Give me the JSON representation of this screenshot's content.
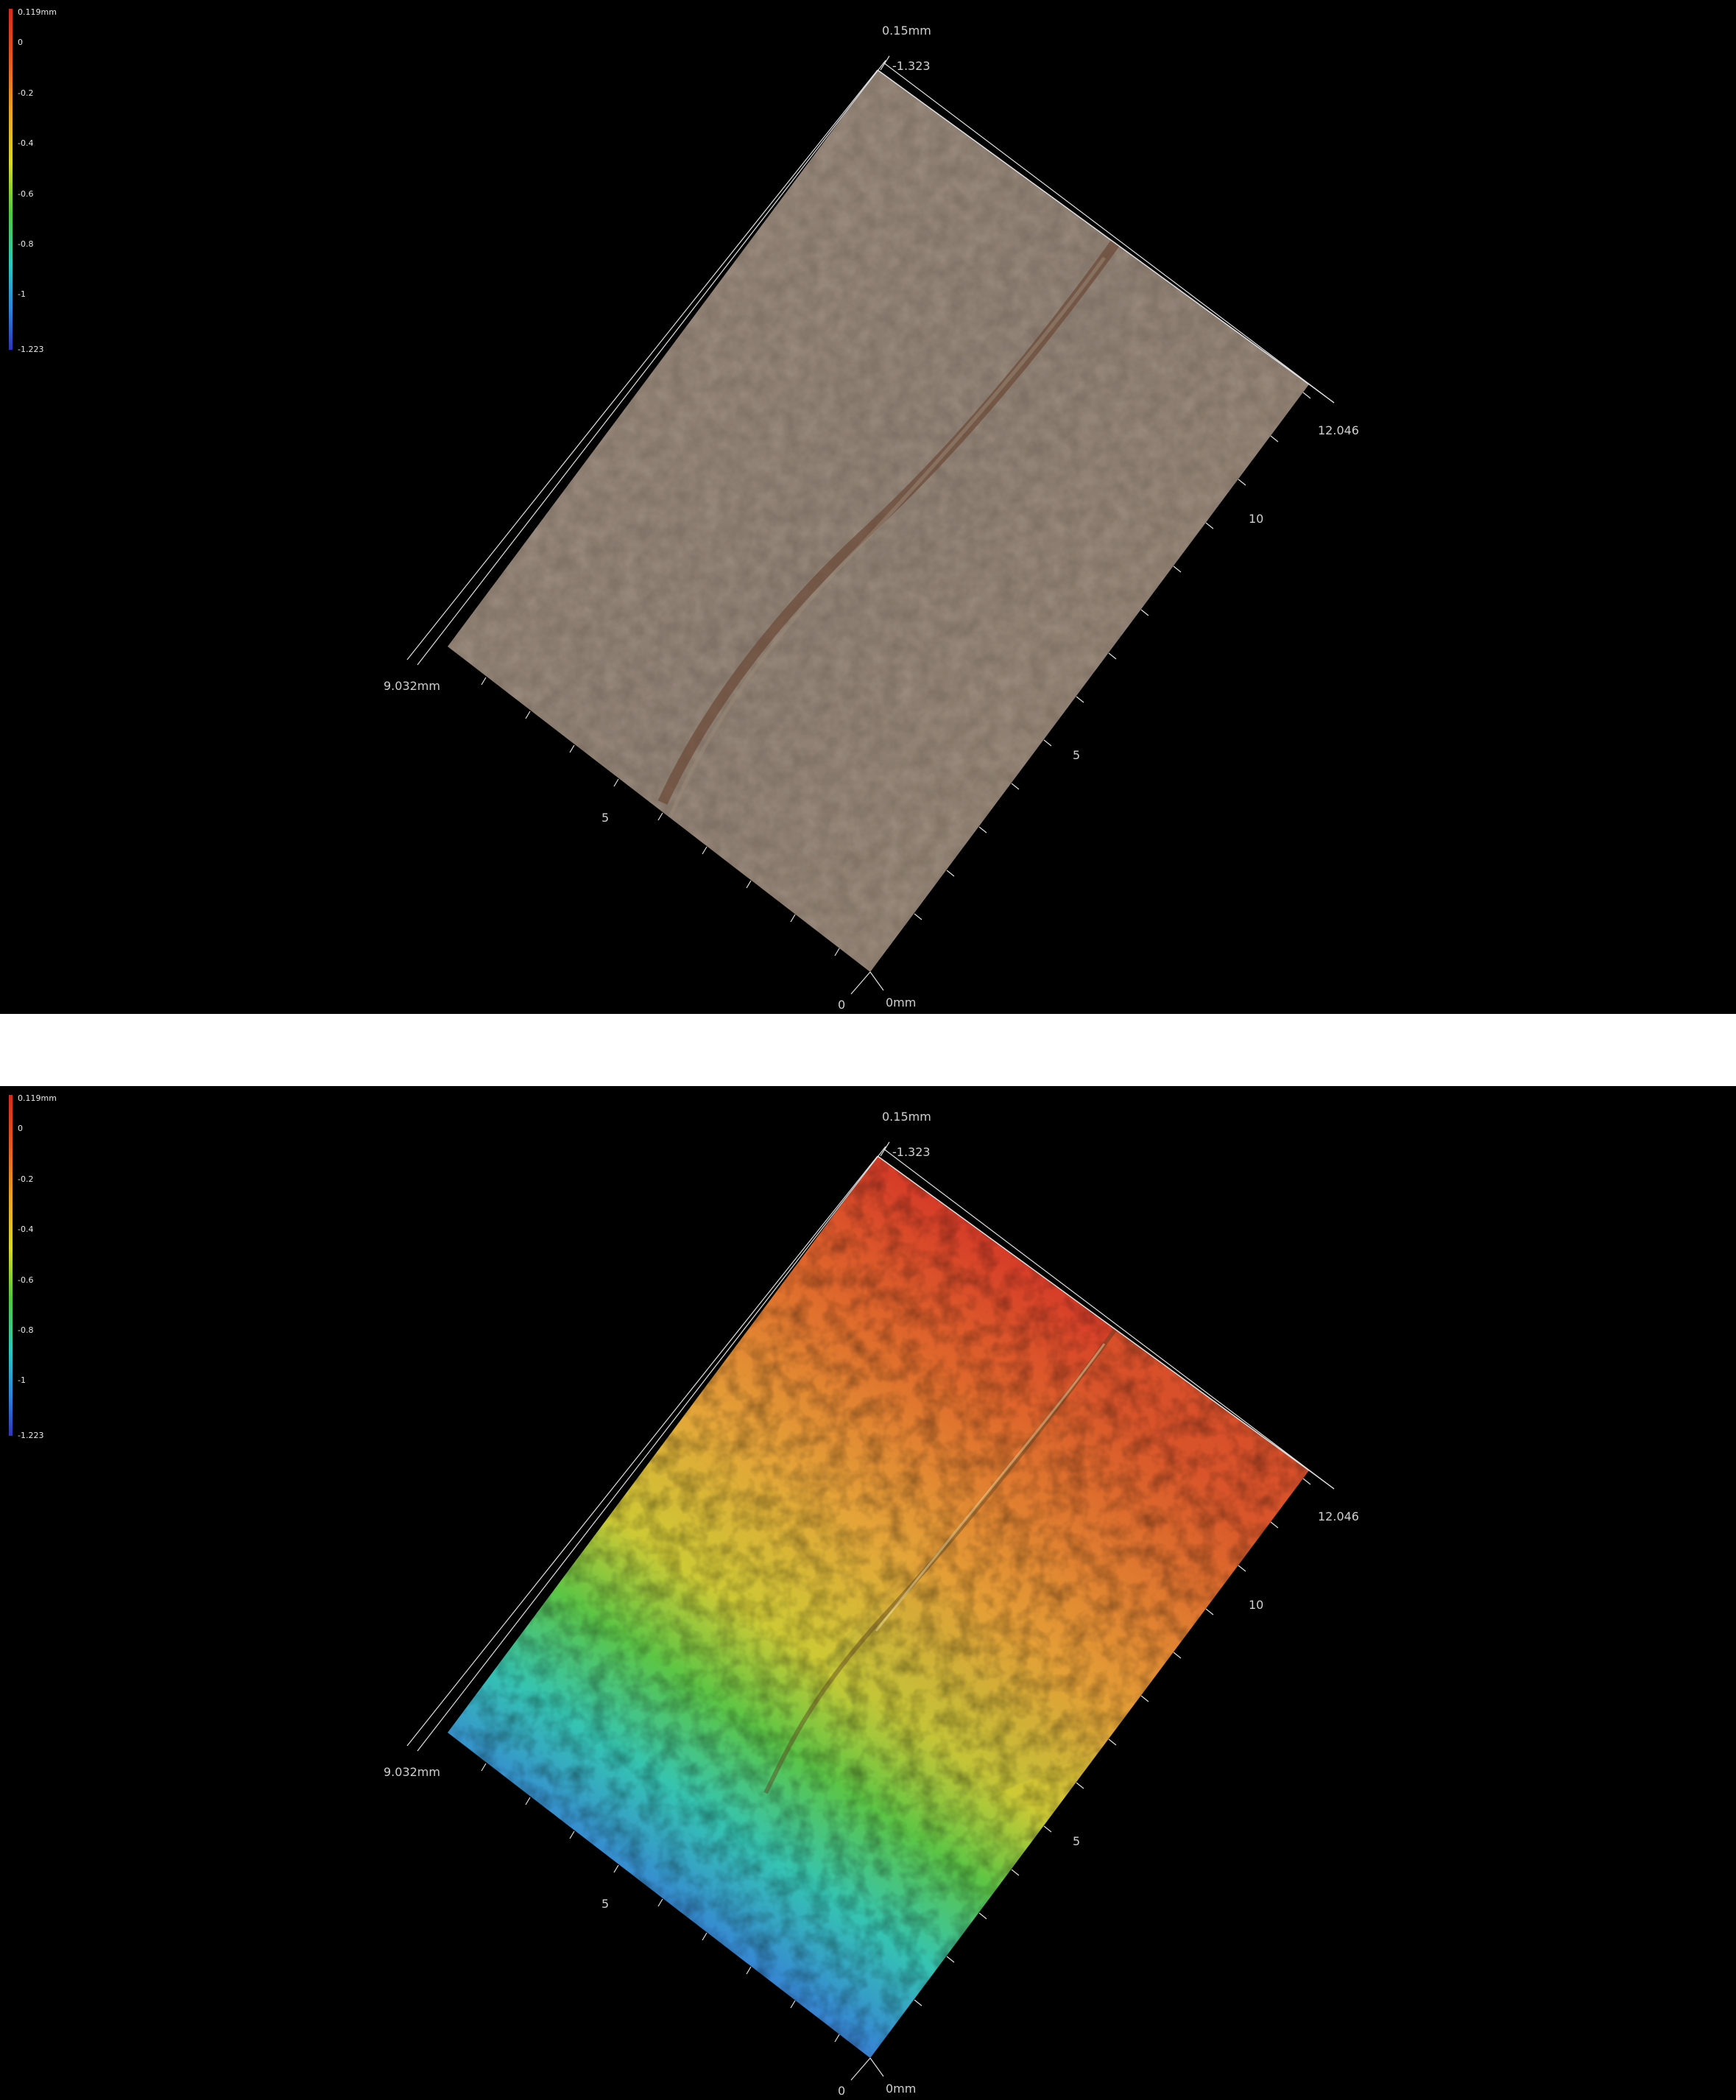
{
  "chart_data": [
    {
      "type": "heatmap",
      "view": "3D surface, true-colour texture",
      "colorbar": {
        "max_label": "0.119mm",
        "ticks": [
          "0",
          "-0.2",
          "-0.4",
          "-0.6",
          "-0.8",
          "-1",
          "-1.223"
        ],
        "min": -1.223,
        "max": 0.119
      },
      "axes": {
        "z_top": "0.15mm",
        "z_bottom": "-1.323",
        "x_max": "12.046",
        "x_ticks": [
          "10",
          "5"
        ],
        "y_max": "9.032mm",
        "y_ticks": [
          "5",
          "0"
        ],
        "origin": "0mm"
      }
    },
    {
      "type": "heatmap",
      "view": "3D surface, height colour map",
      "colorbar": {
        "max_label": "0.119mm",
        "ticks": [
          "0",
          "-0.2",
          "-0.4",
          "-0.6",
          "-0.8",
          "-1",
          "-1.223"
        ],
        "min": -1.223,
        "max": 0.119
      },
      "axes": {
        "z_top": "0.15mm",
        "z_bottom": "-1.323",
        "x_max": "12.046",
        "x_ticks": [
          "10",
          "5"
        ],
        "y_max": "9.032mm",
        "y_ticks": [
          "5",
          "0"
        ],
        "origin": "0mm"
      }
    }
  ],
  "colors": {
    "background": "#000000",
    "separator": "#ffffff",
    "texture": "#8a7a6c",
    "groove": "#6a4a38",
    "colormap": [
      "#d62a1e",
      "#e05a20",
      "#e8a32a",
      "#d8d22e",
      "#5fc93a",
      "#2fc7a6",
      "#2f8fd8",
      "#3a3fb8"
    ]
  }
}
